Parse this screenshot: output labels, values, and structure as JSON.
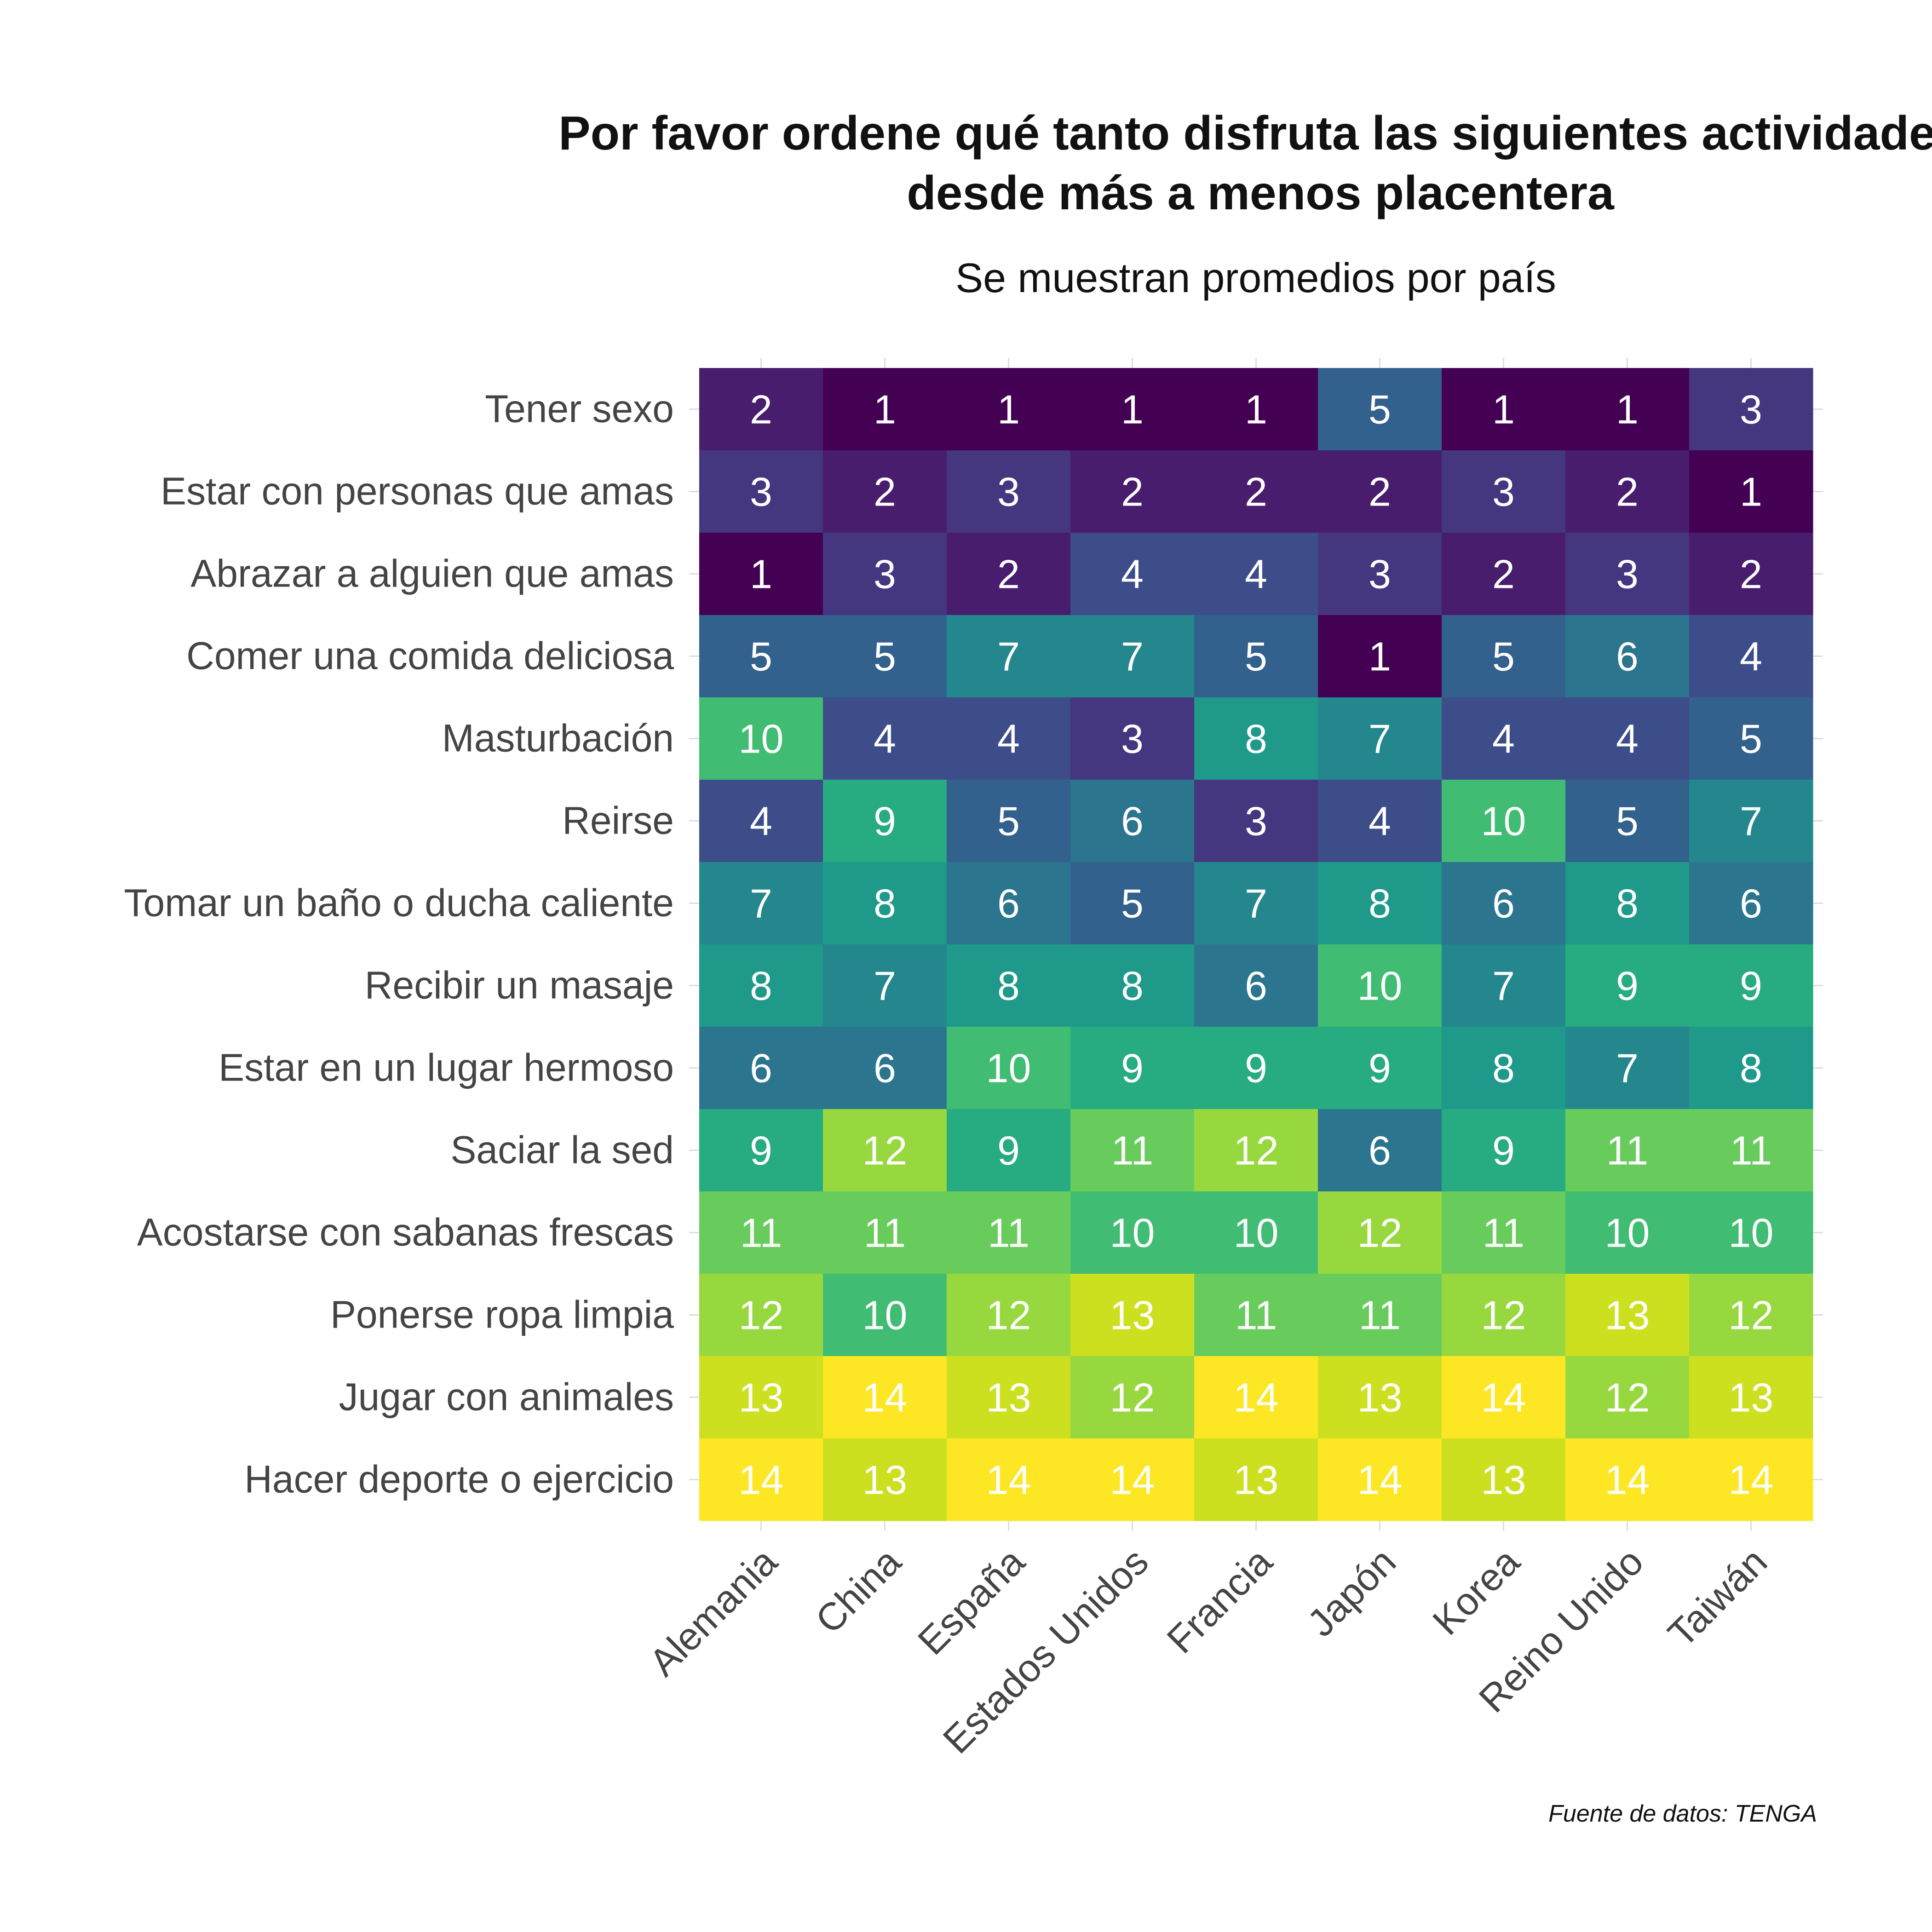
{
  "chart_data": {
    "type": "heatmap",
    "title_line1": "Por favor ordene qué tanto disfruta las siguientes actividades",
    "title_line2": "desde más a menos placentera",
    "subtitle": "Se muestran promedios por país",
    "caption": "Fuente de datos: TENGA",
    "xlabel": "",
    "ylabel": "",
    "x": [
      "Alemania",
      "China",
      "España",
      "Estados Unidos",
      "Francia",
      "Japón",
      "Korea",
      "Reino Unido",
      "Taiwán"
    ],
    "y": [
      "Tener sexo",
      "Estar con personas que amas",
      "Abrazar a alguien que amas",
      "Comer una comida deliciosa",
      "Masturbación",
      "Reirse",
      "Tomar un baño o ducha caliente",
      "Recibir un masaje",
      "Estar en un lugar hermoso",
      "Saciar la sed",
      "Acostarse con sabanas frescas",
      "Ponerse ropa limpia",
      "Jugar con animales",
      "Hacer deporte o ejercicio"
    ],
    "values": [
      [
        2,
        1,
        1,
        1,
        1,
        5,
        1,
        1,
        3
      ],
      [
        3,
        2,
        3,
        2,
        2,
        2,
        3,
        2,
        1
      ],
      [
        1,
        3,
        2,
        4,
        4,
        3,
        2,
        3,
        2
      ],
      [
        5,
        5,
        7,
        7,
        5,
        1,
        5,
        6,
        4
      ],
      [
        10,
        4,
        4,
        3,
        8,
        7,
        4,
        4,
        5
      ],
      [
        4,
        9,
        5,
        6,
        3,
        4,
        10,
        5,
        7
      ],
      [
        7,
        8,
        6,
        5,
        7,
        8,
        6,
        8,
        6
      ],
      [
        8,
        7,
        8,
        8,
        6,
        10,
        7,
        9,
        9
      ],
      [
        6,
        6,
        10,
        9,
        9,
        9,
        8,
        7,
        8
      ],
      [
        9,
        12,
        9,
        11,
        12,
        6,
        9,
        11,
        11
      ],
      [
        11,
        11,
        11,
        10,
        10,
        12,
        11,
        10,
        10
      ],
      [
        12,
        10,
        12,
        13,
        11,
        11,
        12,
        13,
        12
      ],
      [
        13,
        14,
        13,
        12,
        14,
        13,
        14,
        12,
        13
      ],
      [
        14,
        13,
        14,
        14,
        13,
        14,
        13,
        14,
        14
      ]
    ],
    "color_scale": {
      "name": "viridis",
      "min": 1,
      "max": 14,
      "colors": [
        "#440154",
        "#481769",
        "#472A7A",
        "#433D84",
        "#3D4E8A",
        "#355E8D",
        "#2E6D8E",
        "#297B8E",
        "#23898E",
        "#1F978B",
        "#21A585",
        "#2EB37C",
        "#46C06F",
        "#65CB5E",
        "#89D548",
        "#B0DD31",
        "#D8E219",
        "#FDE725"
      ]
    },
    "legend": "none",
    "grid": true
  }
}
